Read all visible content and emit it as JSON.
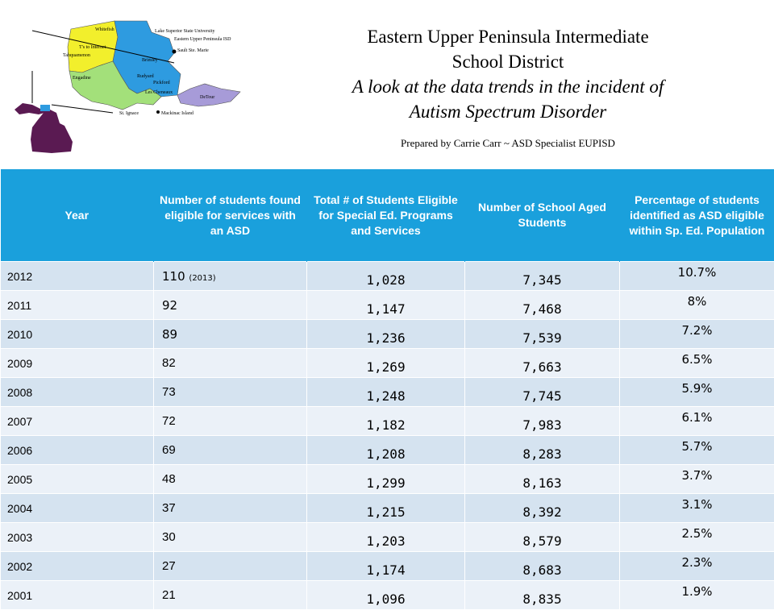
{
  "header": {
    "title_line1": "Eastern Upper Peninsula Intermediate",
    "title_line2": "School District",
    "subtitle_line1": "A look at the data trends in the incident of",
    "subtitle_line2": "Autism Spectrum Disorder",
    "prepared_by": "Prepared by Carrie Carr ~ ASD Specialist EUPISD"
  },
  "map": {
    "labels": {
      "whitefish": "Whitefish",
      "tahquamenon": "Tahquamenon",
      "trout_lake": "T's to Internet",
      "engadine": "Engadine",
      "st_ignace": "St. Ignace",
      "mackinac": "Mackinac Island",
      "lssu": "Lake Superior State University",
      "eupisd": "Eastern Upper Peninsula ISD",
      "sault": "Sault Ste. Marie",
      "brimley": "Brimley",
      "rudyard": "Rudyard",
      "pickford": "Pickford",
      "les_cheneaux": "Les Cheneaux",
      "detour": "DeTour"
    },
    "colors": {
      "yellow": "#f2ef2c",
      "blue": "#2e9be0",
      "green": "#a3e07a",
      "purple": "#a79bd8",
      "michigan": "#5a1a52"
    }
  },
  "table": {
    "headers": [
      "Year",
      "Number of students found eligible for services with an ASD",
      "Total # of Students Eligible for Special Ed. Programs and Services",
      "Number of School Aged Students",
      "Percentage of students identified as ASD eligible within Sp. Ed. Population"
    ],
    "rows": [
      {
        "year": "2012",
        "asd": "110",
        "asd_note": "(2013)",
        "sped": "1,028",
        "school_aged": "7,345",
        "pct": "10.7%"
      },
      {
        "year": "2011",
        "asd": "92",
        "asd_note": "",
        "sped": "1,147",
        "school_aged": "7,468",
        "pct": "8%"
      },
      {
        "year": "2010",
        "asd": "89",
        "asd_note": "",
        "sped": "1,236",
        "school_aged": "7,539",
        "pct": "7.2%"
      },
      {
        "year": "2009",
        "asd": "82",
        "asd_note": "",
        "sped": "1,269",
        "school_aged": "7,663",
        "pct": "6.5%"
      },
      {
        "year": "2008",
        "asd": "73",
        "asd_note": "",
        "sped": "1,248",
        "school_aged": "7,745",
        "pct": "5.9%"
      },
      {
        "year": "2007",
        "asd": "72",
        "asd_note": "",
        "sped": "1,182",
        "school_aged": "7,983",
        "pct": "6.1%"
      },
      {
        "year": "2006",
        "asd": "69",
        "asd_note": "",
        "sped": "1,208",
        "school_aged": "8,283",
        "pct": "5.7%"
      },
      {
        "year": "2005",
        "asd": "48",
        "asd_note": "",
        "sped": "1,299",
        "school_aged": "8,163",
        "pct": "3.7%"
      },
      {
        "year": "2004",
        "asd": "37",
        "asd_note": "",
        "sped": "1,215",
        "school_aged": "8,392",
        "pct": "3.1%"
      },
      {
        "year": "2003",
        "asd": "30",
        "asd_note": "",
        "sped": "1,203",
        "school_aged": "8,579",
        "pct": "2.5%"
      },
      {
        "year": "2002",
        "asd": "27",
        "asd_note": "",
        "sped": "1,174",
        "school_aged": "8,683",
        "pct": "2.3%"
      },
      {
        "year": "2001",
        "asd": "21",
        "asd_note": "",
        "sped": "1,096",
        "school_aged": "8,835",
        "pct": "1.9%"
      }
    ]
  }
}
